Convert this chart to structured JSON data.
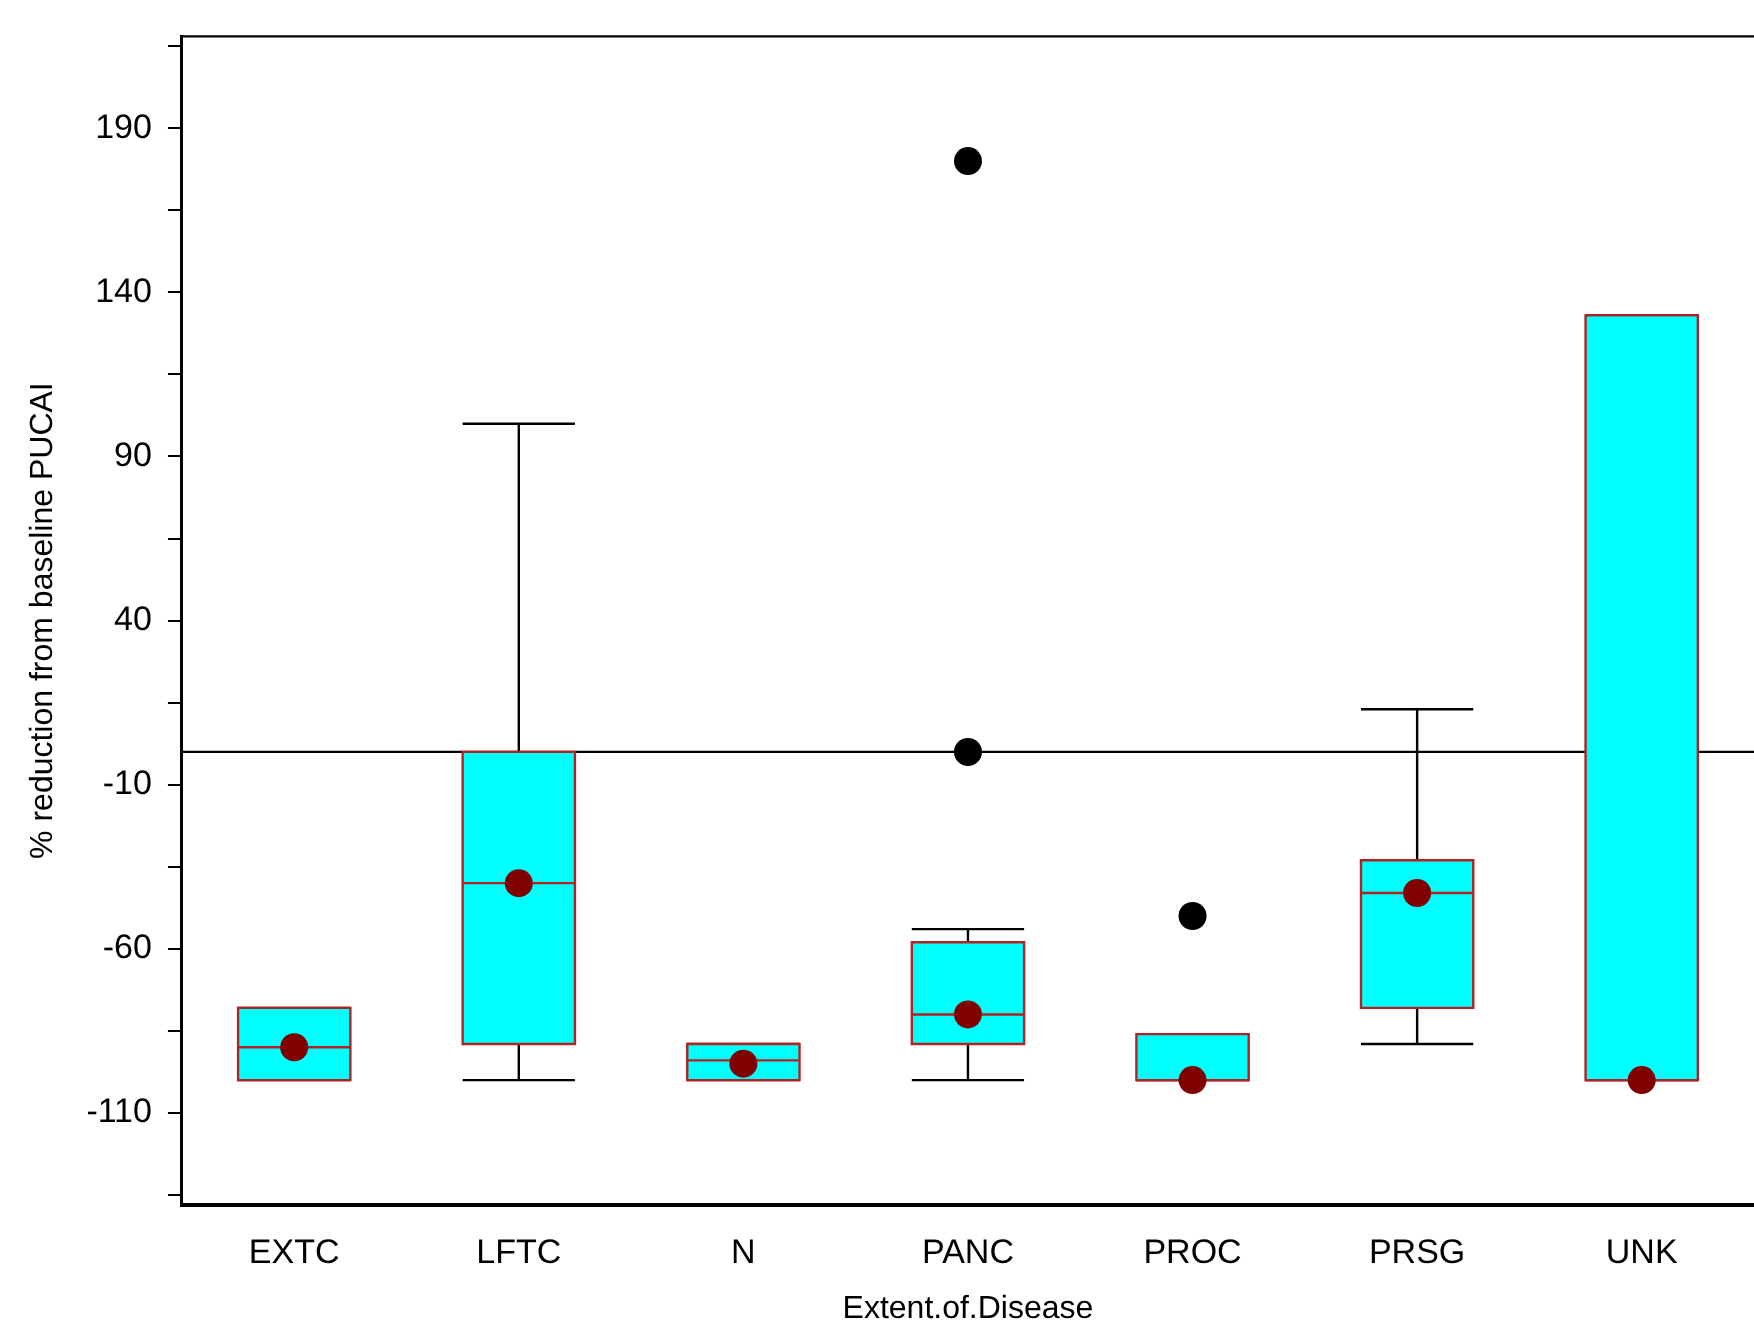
{
  "chart_data": {
    "type": "box",
    "xlabel": "Extent.of.Disease",
    "ylabel": "% reduction from baseline PUCAI",
    "categories": [
      "EXTC",
      "LFTC",
      "N",
      "PANC",
      "PROC",
      "PRSG",
      "UNK"
    ],
    "series": [
      {
        "color": "#00ffff",
        "boxes": [
          {
            "low": -100,
            "q1": -100,
            "median": -90,
            "q3": -78,
            "high": -78,
            "mean": -90
          },
          {
            "low": -100,
            "q1": -89,
            "median": -40,
            "q3": 0,
            "high": 100,
            "mean": -40
          },
          {
            "low": -100,
            "q1": -100,
            "median": -94,
            "q3": -89,
            "high": -89,
            "mean": -95
          },
          {
            "low": -100,
            "q1": -89,
            "median": -80,
            "q3": -58,
            "high": -54,
            "mean": -80,
            "outliers": [
              180,
              0
            ]
          },
          {
            "low": -100,
            "q1": -100,
            "median": -100,
            "q3": -86,
            "high": -86,
            "mean": -100,
            "outliers": [
              -50
            ]
          },
          {
            "low": -89,
            "q1": -78,
            "median": -43,
            "q3": -33,
            "high": 13,
            "mean": -43
          },
          {
            "low": -100,
            "q1": -100,
            "median": -100,
            "q3": 133,
            "high": 133,
            "mean": -100
          }
        ]
      }
    ],
    "ylim": [
      -138,
      218
    ],
    "yticks": [
      {
        "value": 215,
        "label": null
      },
      190,
      {
        "value": 165,
        "label": null
      },
      140,
      {
        "value": 115,
        "label": null
      },
      90,
      {
        "value": 65,
        "label": null
      },
      40,
      {
        "value": 15,
        "label": null
      },
      -10,
      {
        "value": -35,
        "label": null
      },
      -60,
      {
        "value": -85,
        "label": null
      },
      -110,
      {
        "value": -135,
        "label": null
      }
    ],
    "ref_lines": [
      {
        "axis": "y",
        "value": 0,
        "color": "#000000"
      }
    ],
    "grid": false,
    "legend": false
  }
}
